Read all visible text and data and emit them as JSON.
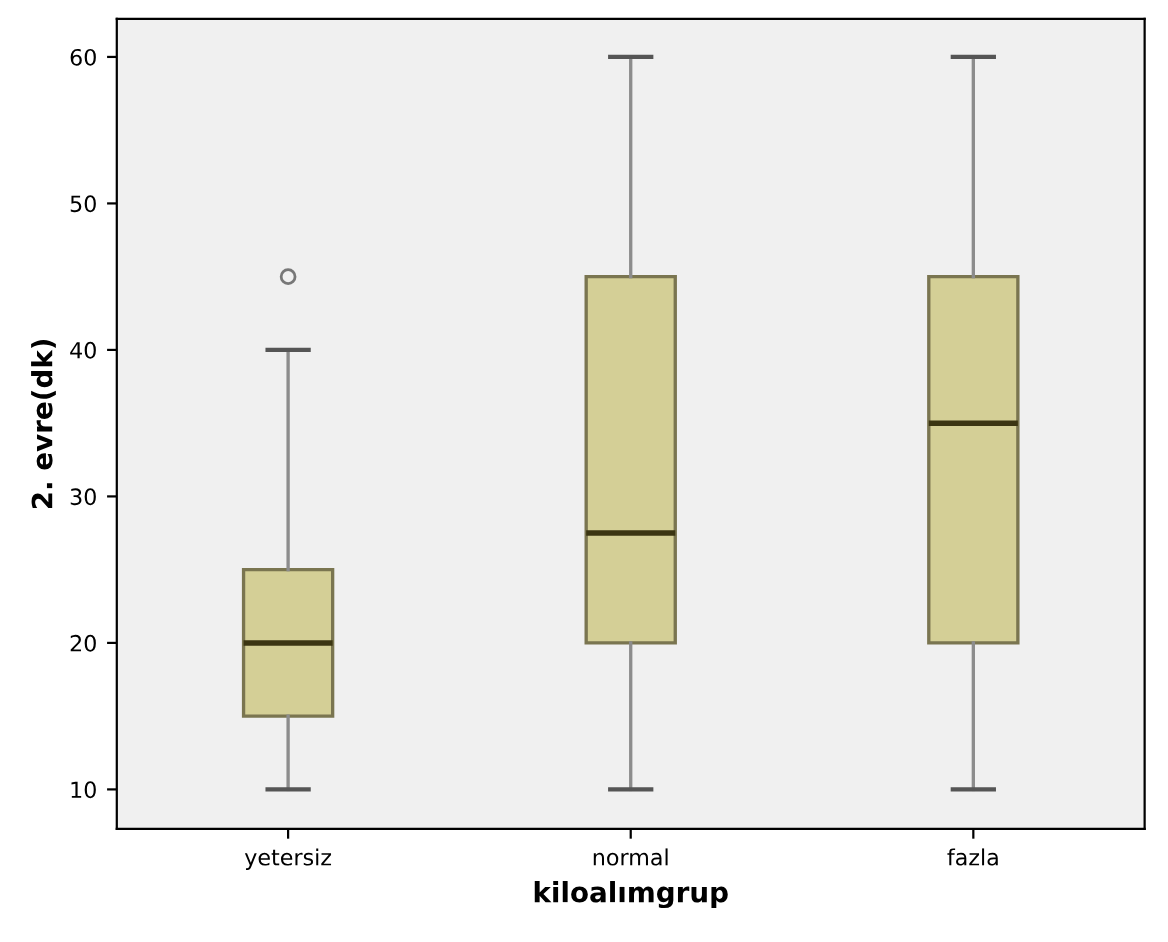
{
  "chart_data": {
    "type": "box",
    "xlabel": "kiloalımgrup",
    "ylabel": "2. evre(dk)",
    "categories": [
      "yetersiz",
      "normal",
      "fazla"
    ],
    "series": [
      {
        "color": "#d4cf96",
        "boxes": [
          {
            "low": 10,
            "q1": 15,
            "median": 20,
            "q3": 25,
            "high": 40,
            "outliers": [
              45
            ]
          },
          {
            "low": 10,
            "q1": 20,
            "median": 27.5,
            "q3": 45,
            "high": 60
          },
          {
            "low": 10,
            "q1": 20,
            "median": 35,
            "q3": 45,
            "high": 60
          }
        ]
      }
    ],
    "ylim": [
      7.3,
      62.6
    ],
    "yticks": [
      10,
      20,
      30,
      40,
      50,
      60
    ],
    "grid": false,
    "legend": false
  }
}
